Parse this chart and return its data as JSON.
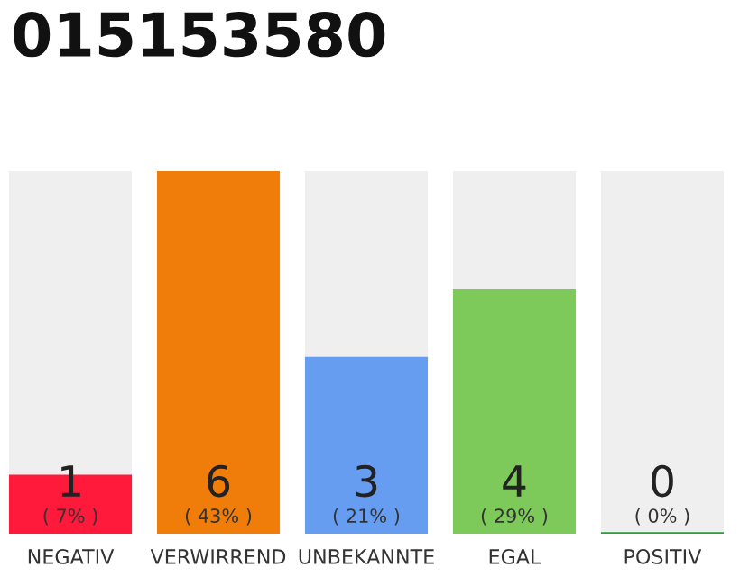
{
  "chart_data": {
    "type": "bar",
    "title": "015153580",
    "categories": [
      "NEGATIV",
      "VERWIRREND",
      "UNBEKANNTE",
      "EGAL",
      "POSITIV"
    ],
    "values": [
      7,
      43,
      21,
      29,
      0
    ],
    "colors": [
      "#ff1a3c",
      "#f07d0a",
      "#669df0",
      "#7dc95a",
      "#22a33a"
    ],
    "value_labels": [
      "( 7% )",
      "( 43% )",
      "( 21% )",
      "( 29% )",
      "( 0% )"
    ],
    "annotations": [
      "1",
      "6",
      "3",
      "4",
      "0"
    ],
    "grid": false,
    "legend": false
  }
}
